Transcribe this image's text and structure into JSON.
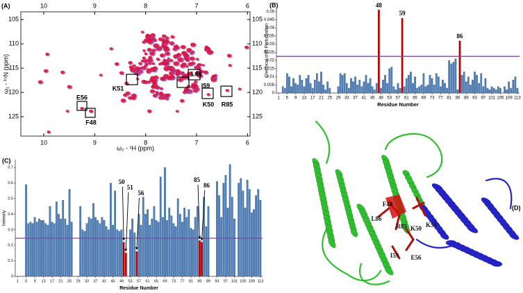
{
  "chart_data": [
    {
      "type": "spectrum",
      "panel_label": "(A)",
      "x_label": "ω₂ - ¹H  (ppm)",
      "y_label": "ω₁ - ¹⁵N  (ppm)",
      "xlim": [
        10.45,
        5.95
      ],
      "ylim": [
        103.4,
        129
      ],
      "xticks": [
        10,
        9,
        8,
        7,
        6
      ],
      "yticks": [
        105,
        110,
        115,
        120,
        125
      ],
      "annotations": [
        "E56",
        "F48",
        "K51",
        "L86",
        "I59",
        "K50",
        "R85"
      ]
    },
    {
      "type": "bar",
      "panel_label": "(B)",
      "x_label": "Residue Number",
      "y_label": "Chemical shift Perturbation",
      "color": "#4f81bd",
      "highlight_color": "#c00000",
      "highlighted": [
        48,
        59,
        86
      ],
      "threshold": 0.0225,
      "threshold_color": "#8a3cb0",
      "xlim": [
        0,
        114
      ],
      "ylim": [
        0,
        0.052
      ],
      "xticks": [
        1,
        5,
        9,
        13,
        17,
        21,
        25,
        29,
        33,
        37,
        41,
        45,
        49,
        53,
        57,
        61,
        65,
        69,
        73,
        77,
        81,
        85,
        89,
        93,
        97,
        101,
        105,
        109,
        113
      ],
      "yticks": [
        0,
        0.005,
        0.01,
        0.015,
        0.02,
        0.025,
        0.03,
        0.035,
        0.04,
        0.045,
        0.05
      ],
      "x": [
        1,
        2,
        3,
        4,
        5,
        6,
        7,
        8,
        9,
        10,
        11,
        12,
        13,
        14,
        15,
        16,
        17,
        18,
        19,
        20,
        21,
        22,
        23,
        24,
        25,
        26,
        27,
        28,
        29,
        30,
        31,
        32,
        33,
        34,
        35,
        36,
        37,
        38,
        39,
        40,
        41,
        42,
        43,
        44,
        45,
        46,
        47,
        48,
        49,
        50,
        51,
        52,
        53,
        54,
        55,
        56,
        57,
        58,
        59,
        60,
        61,
        62,
        63,
        64,
        65,
        66,
        67,
        68,
        69,
        70,
        71,
        72,
        73,
        74,
        75,
        76,
        77,
        78,
        79,
        80,
        81,
        82,
        83,
        84,
        85,
        86,
        87,
        88,
        89,
        90,
        91,
        92,
        93,
        94,
        95,
        96,
        97,
        98,
        99,
        100,
        101,
        102,
        103,
        104,
        105,
        106,
        107,
        108,
        109,
        110,
        111,
        112,
        113
      ],
      "values": [
        null,
        null,
        0.004,
        0.003,
        0.012,
        0.01,
        0.004,
        0.009,
        0.006,
        0.005,
        0.011,
        0.008,
        0.004,
        0.009,
        0.011,
        0.006,
        0.003,
        0.008,
        0.012,
        0.007,
        0.013,
        0.005,
        0.002,
        0.007,
        0.003,
        null,
        null,
        null,
        0.004,
        0.012,
        0.011,
        0.012,
        0.006,
        0.003,
        0.009,
        0.007,
        0.01,
        0.005,
        0.008,
        0.004,
        0.007,
        0.011,
        0.006,
        0.009,
        0.004,
        0.002,
        0.006,
        0.051,
        0.003,
        0.008,
        0.011,
        0.006,
        0.015,
        0.016,
        0.004,
        0.002,
        0.006,
        0.003,
        0.046,
        0.004,
        0.009,
        0.011,
        0.013,
        0.006,
        0.01,
        0.003,
        0.004,
        0.005,
        0.012,
        0.004,
        0.005,
        0.011,
        0.009,
        0.005,
        0.012,
        0.01,
        0.004,
        0.008,
        0.006,
        0.003,
        0.02,
        0.018,
        0.019,
        0.021,
        0.002,
        0.032,
        0.011,
        0.013,
        0.007,
        0.01,
        0.005,
        0.008,
        0.013,
        0.011,
        0.006,
        0.012,
        0.004,
        0.009,
        0.003,
        0.002,
        0.004,
        0.003,
        0.002,
        0.004,
        0.003,
        null,
        0.004,
        0.002,
        0.007,
        0.003,
        0.008,
        0.01,
        0.003
      ]
    },
    {
      "type": "bar",
      "panel_label": "(C)",
      "x_label": "Residue Number",
      "y_label": "Intensity",
      "color": "#4f81bd",
      "highlight_color": "#c00000",
      "highlighted": [
        50,
        51,
        56,
        85,
        86
      ],
      "threshold": 0.245,
      "threshold_color": "#8a3cb0",
      "xlim": [
        0,
        114
      ],
      "ylim": [
        0,
        0.75
      ],
      "xticks": [
        1,
        5,
        9,
        13,
        17,
        21,
        25,
        29,
        33,
        37,
        41,
        45,
        49,
        53,
        57,
        61,
        65,
        69,
        73,
        77,
        81,
        85,
        89,
        93,
        97,
        101,
        105,
        109,
        113
      ],
      "yticks": [
        0,
        0.1,
        0.2,
        0.3,
        0.4,
        0.5,
        0.6,
        0.7
      ],
      "x": [
        1,
        2,
        3,
        4,
        5,
        6,
        7,
        8,
        9,
        10,
        11,
        12,
        13,
        14,
        15,
        16,
        17,
        18,
        19,
        20,
        21,
        22,
        23,
        24,
        25,
        26,
        27,
        28,
        29,
        30,
        31,
        32,
        33,
        34,
        35,
        36,
        37,
        38,
        39,
        40,
        41,
        42,
        43,
        44,
        45,
        46,
        47,
        48,
        49,
        50,
        51,
        52,
        53,
        54,
        55,
        56,
        57,
        58,
        59,
        60,
        61,
        62,
        63,
        64,
        65,
        66,
        67,
        68,
        69,
        70,
        71,
        72,
        73,
        74,
        75,
        76,
        77,
        78,
        79,
        80,
        81,
        82,
        83,
        84,
        85,
        86,
        87,
        88,
        89,
        90,
        91,
        92,
        93,
        94,
        95,
        96,
        97,
        98,
        99,
        100,
        101,
        102,
        103,
        104,
        105,
        106,
        107,
        108,
        109,
        110,
        111,
        112,
        113
      ],
      "values": [
        null,
        null,
        null,
        null,
        0.59,
        0.34,
        0.35,
        0.34,
        0.38,
        0.35,
        0.37,
        0.36,
        0.36,
        0.34,
        0.33,
        0.45,
        0.35,
        0.34,
        0.48,
        0.4,
        0.37,
        0.49,
        0.37,
        0.33,
        0.56,
        0.35,
        null,
        null,
        null,
        0.45,
        0.3,
        0.29,
        0.34,
        0.38,
        0.37,
        0.47,
        0.38,
        0.36,
        0.34,
        0.38,
        0.36,
        0.32,
        0.3,
        0.6,
        0.33,
        0.55,
        0.3,
        0.29,
        0.3,
        0.22,
        0.15,
        null,
        0.3,
        0.37,
        0.28,
        0.16,
        0.4,
        0.33,
        0.51,
        0.4,
        0.43,
        0.33,
        0.37,
        0.45,
        0.36,
        0.35,
        0.64,
        0.38,
        0.7,
        0.36,
        0.44,
        0.39,
        0.34,
        0.32,
        0.5,
        0.4,
        0.35,
        0.44,
        0.38,
        0.43,
        0.31,
        0.3,
        0.38,
        0.45,
        0.23,
        0.22,
        0.51,
        0.32,
        0.45,
        null,
        null,
        null,
        0.61,
        0.52,
        0.38,
        0.6,
        0.65,
        0.44,
        0.72,
        0.51,
        0.37,
        null,
        0.6,
        0.63,
        0.55,
        0.44,
        0.62,
        0.56,
        0.41,
        0.43,
        0.52,
        0.56,
        0.49
      ]
    }
  ],
  "structure": {
    "panel_label": "(D)",
    "residue_labels": [
      "F48",
      "L86",
      "R85",
      "K50",
      "K51",
      "I59",
      "E56"
    ]
  }
}
